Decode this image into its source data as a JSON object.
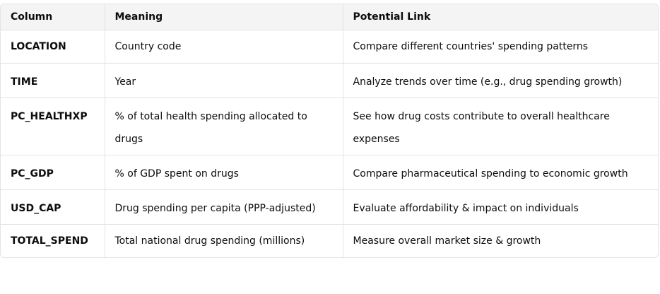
{
  "table": {
    "headers": [
      "Column",
      "Meaning",
      "Potential Link"
    ],
    "rows": [
      [
        "LOCATION",
        "Country code",
        "Compare different countries' spending patterns"
      ],
      [
        "TIME",
        "Year",
        "Analyze trends over time (e.g., drug spending growth)"
      ],
      [
        "PC_HEALTHXP",
        "% of total health spending allocated to drugs",
        "See how drug costs contribute to overall healthcare expenses"
      ],
      [
        "PC_GDP",
        "% of GDP spent on drugs",
        "Compare pharmaceutical spending to economic growth"
      ],
      [
        "USD_CAP",
        "Drug spending per capita (PPP-adjusted)",
        "Evaluate affordability & impact on individuals"
      ],
      [
        "TOTAL_SPEND",
        "Total national drug spending (millions)",
        "Measure overall market size & growth"
      ]
    ]
  }
}
